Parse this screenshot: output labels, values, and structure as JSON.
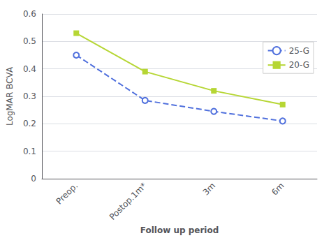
{
  "chart_data": {
    "type": "line",
    "categories": [
      "Preop.",
      "Postop.1m*",
      "3m",
      "6m"
    ],
    "series": [
      {
        "name": "25-G",
        "values": [
          0.45,
          0.285,
          0.245,
          0.21
        ],
        "marker": "circle",
        "line_style": "dashed"
      },
      {
        "name": "20-G",
        "values": [
          0.53,
          0.39,
          0.32,
          0.27
        ],
        "marker": "square",
        "line_style": "solid"
      }
    ],
    "xlabel": "Follow up period",
    "ylabel": "LogMAR BCVA",
    "ylim": [
      0,
      0.6
    ],
    "yticks": [
      0,
      0.1,
      0.2,
      0.3,
      0.4,
      0.5,
      0.6
    ],
    "grid": true,
    "legend": "right"
  }
}
